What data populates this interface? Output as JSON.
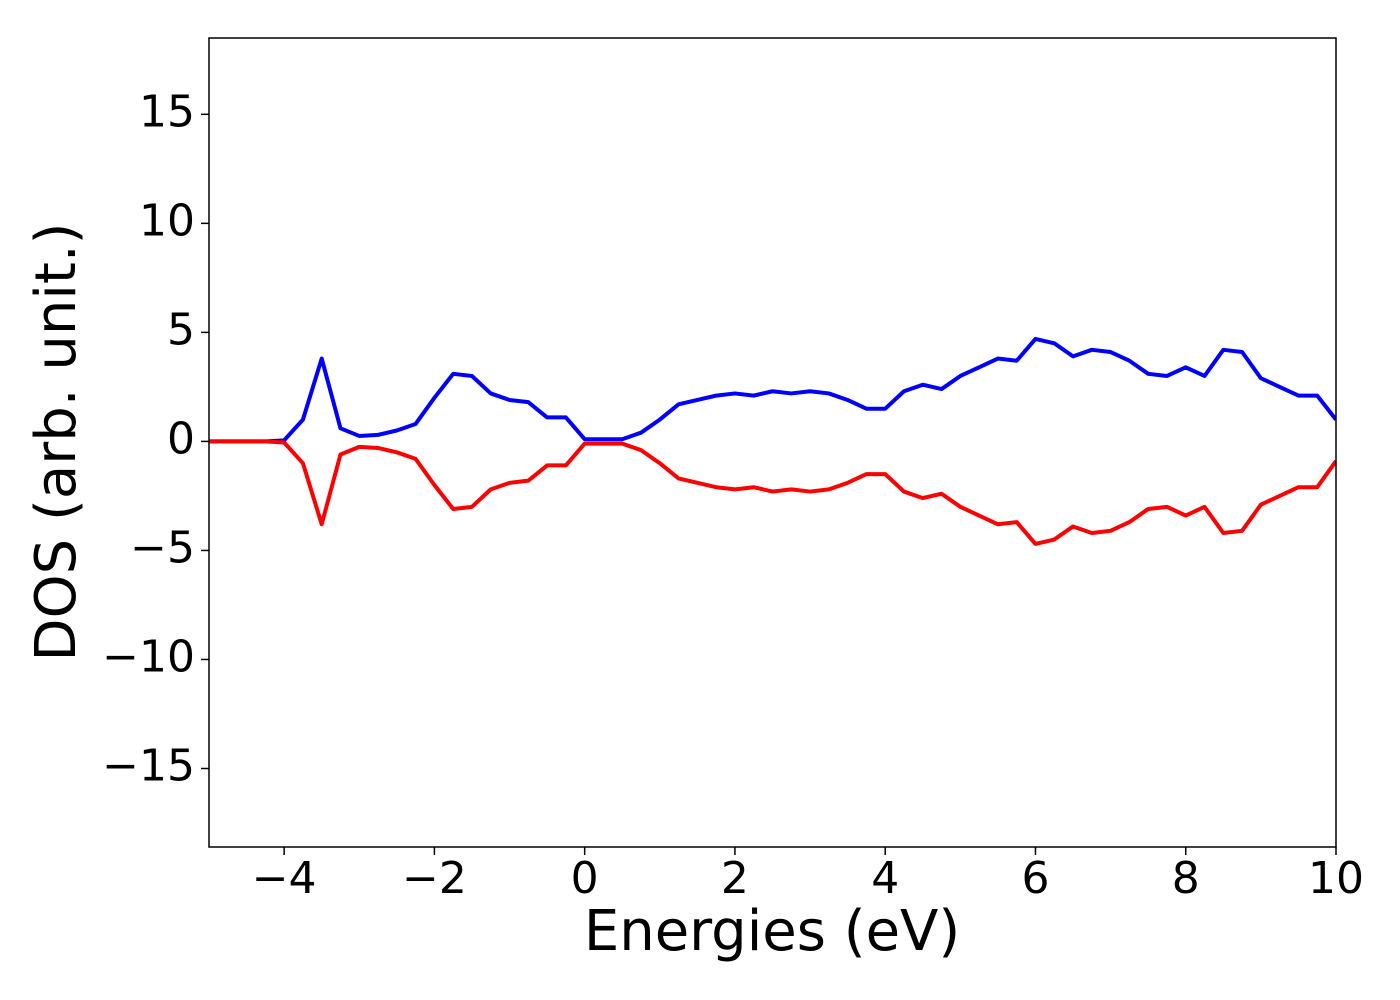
{
  "chart_data": {
    "type": "line",
    "x_label": "Energies (eV)",
    "y_label": "DOS (arb. unit.)",
    "x": [
      -5,
      -4.75,
      -4.5,
      -4.25,
      -4,
      -3.75,
      -3.5,
      -3.25,
      -3,
      -2.75,
      -2.5,
      -2.25,
      -2,
      -1.75,
      -1.5,
      -1.25,
      -1,
      -0.75,
      -0.5,
      -0.25,
      0,
      0.25,
      0.5,
      0.75,
      1,
      1.25,
      1.5,
      1.75,
      2,
      2.25,
      2.5,
      2.75,
      3,
      3.25,
      3.5,
      3.75,
      4,
      4.25,
      4.5,
      4.75,
      5,
      5.25,
      5.5,
      5.75,
      6,
      6.25,
      6.5,
      6.75,
      7,
      7.25,
      7.5,
      7.75,
      8,
      8.25,
      8.5,
      8.75,
      9,
      9.25,
      9.5,
      9.75,
      10
    ],
    "series": [
      {
        "color": "#0000ff",
        "values": [
          0,
          0,
          0,
          0,
          0.05,
          1.0,
          3.8,
          0.6,
          0.25,
          0.3,
          0.5,
          0.8,
          2.0,
          3.1,
          3.0,
          2.2,
          1.9,
          1.8,
          1.1,
          1.1,
          0.1,
          0.1,
          0.1,
          0.4,
          1.0,
          1.7,
          1.9,
          2.1,
          2.2,
          2.1,
          2.3,
          2.2,
          2.3,
          2.2,
          1.9,
          1.5,
          1.5,
          2.3,
          2.6,
          2.4,
          3.0,
          3.4,
          3.8,
          3.7,
          4.7,
          4.5,
          3.9,
          4.2,
          4.1,
          3.7,
          3.1,
          3.0,
          3.4,
          3.0,
          4.2,
          4.1,
          2.9,
          2.5,
          2.1,
          2.1,
          1.0
        ]
      },
      {
        "color": "#ff0000",
        "values": [
          0,
          0,
          0,
          0,
          -0.05,
          -1.0,
          -3.8,
          -0.6,
          -0.25,
          -0.3,
          -0.5,
          -0.8,
          -2.0,
          -3.1,
          -3.0,
          -2.2,
          -1.9,
          -1.8,
          -1.1,
          -1.1,
          -0.1,
          -0.1,
          -0.1,
          -0.4,
          -1.0,
          -1.7,
          -1.9,
          -2.1,
          -2.2,
          -2.1,
          -2.3,
          -2.2,
          -2.3,
          -2.2,
          -1.9,
          -1.5,
          -1.5,
          -2.3,
          -2.6,
          -2.4,
          -3.0,
          -3.4,
          -3.8,
          -3.7,
          -4.7,
          -4.5,
          -3.9,
          -4.2,
          -4.1,
          -3.7,
          -3.1,
          -3.0,
          -3.4,
          -3.0,
          -4.2,
          -4.1,
          -2.9,
          -2.5,
          -2.1,
          -2.1,
          -0.9
        ]
      }
    ],
    "xlim": [
      -5,
      10
    ],
    "ylim": [
      -18.6,
      18.5
    ],
    "xticks": [
      {
        "value": -4,
        "label": "−4"
      },
      {
        "value": -2,
        "label": "−2"
      },
      0,
      2,
      4,
      6,
      8,
      10
    ],
    "yticks": [
      {
        "value": -15,
        "label": "−15"
      },
      {
        "value": -10,
        "label": "−10"
      },
      {
        "value": -5,
        "label": "−5"
      },
      0,
      5,
      10,
      15
    ],
    "grid": false
  }
}
